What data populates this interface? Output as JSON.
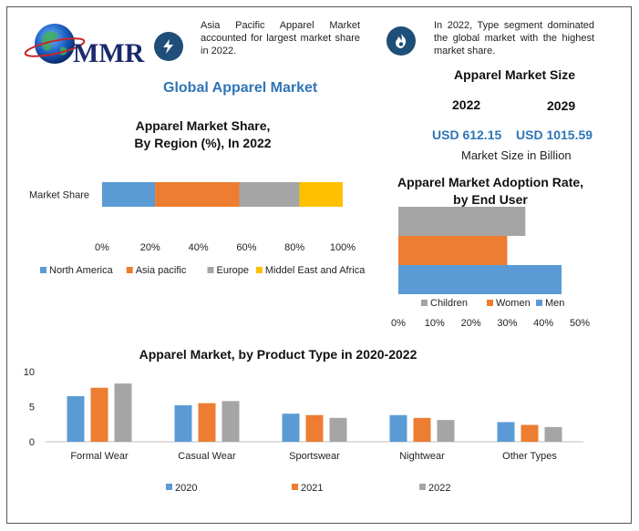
{
  "header": {
    "logo_text": "MMR",
    "callout_1": "Asia Pacific Apparel Market accounted for largest market share in 2022.",
    "callout_2": "In 2022, Type segment dominated the global market with the highest market share.",
    "main_title": "Global Apparel Market"
  },
  "market_size": {
    "title": "Apparel Market Size",
    "year_1": "2022",
    "year_2": "2029",
    "value_1": "USD 612.15",
    "value_2": "USD 1015.59",
    "unit_note": "Market Size in Billion"
  },
  "colors": {
    "blue": "#5b9bd5",
    "orange": "#ed7d31",
    "gray": "#a5a5a5",
    "yellow": "#ffc000",
    "accent": "#2e75b6",
    "icon_bg": "#1f4e79"
  },
  "icons": [
    "lightning-icon",
    "flame-icon",
    "globe-icon"
  ],
  "chart_data": [
    {
      "type": "bar",
      "orientation": "horizontal-stacked-100",
      "title": "Apparel Market Share,\nBy Region (%), In 2022",
      "categories": [
        "Market Share"
      ],
      "series": [
        {
          "name": "North America",
          "values": [
            22
          ]
        },
        {
          "name": "Asia pacific",
          "values": [
            35
          ]
        },
        {
          "name": "Europe",
          "values": [
            25
          ]
        },
        {
          "name": "Middel East and Africa",
          "values": [
            18
          ]
        }
      ],
      "x_ticks": [
        "0%",
        "20%",
        "40%",
        "60%",
        "80%",
        "100%"
      ],
      "xlim": [
        0,
        100
      ],
      "legend": "bottom"
    },
    {
      "type": "bar",
      "orientation": "horizontal",
      "title": "Apparel Market Adoption Rate,\nby End User",
      "series": [
        {
          "name": "Children",
          "values": [
            35
          ]
        },
        {
          "name": "Women",
          "values": [
            30
          ]
        },
        {
          "name": "Men",
          "values": [
            45
          ]
        }
      ],
      "x_ticks": [
        "0%",
        "10%",
        "20%",
        "30%",
        "40%",
        "50%"
      ],
      "xlim": [
        0,
        50
      ],
      "legend": "bottom"
    },
    {
      "type": "bar",
      "title": "Apparel Market, by Product Type in 2020-2022",
      "categories": [
        "Formal Wear",
        "Casual Wear",
        "Sportswear",
        "Nightwear",
        "Other Types"
      ],
      "series": [
        {
          "name": "2020",
          "values": [
            6.5,
            5.2,
            4.0,
            3.8,
            2.8
          ]
        },
        {
          "name": "2021",
          "values": [
            7.7,
            5.5,
            3.8,
            3.4,
            2.4
          ]
        },
        {
          "name": "2022",
          "values": [
            8.3,
            5.8,
            3.4,
            3.1,
            2.1
          ]
        }
      ],
      "y_ticks": [
        "0",
        "5",
        "10"
      ],
      "ylim": [
        0,
        10
      ],
      "legend": "bottom"
    }
  ]
}
